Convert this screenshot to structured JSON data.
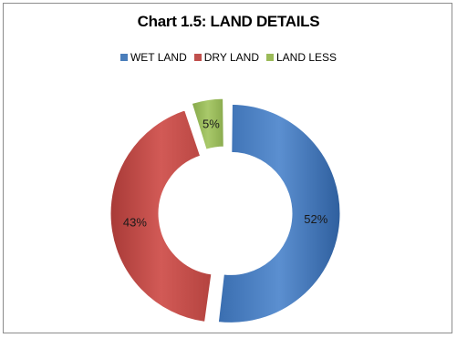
{
  "chart_data": {
    "type": "pie",
    "style": "doughnut",
    "title": "Chart 1.5: LAND DETAILS",
    "legend_position": "top",
    "slices": [
      {
        "name": "WET LAND",
        "value": 52,
        "label": "52%",
        "color": "#4a7ebb"
      },
      {
        "name": "DRY LAND",
        "value": 43,
        "label": "43%",
        "color": "#c0504d"
      },
      {
        "name": "LAND LESS",
        "value": 5,
        "label": "5%",
        "color": "#9bbb59"
      }
    ]
  }
}
